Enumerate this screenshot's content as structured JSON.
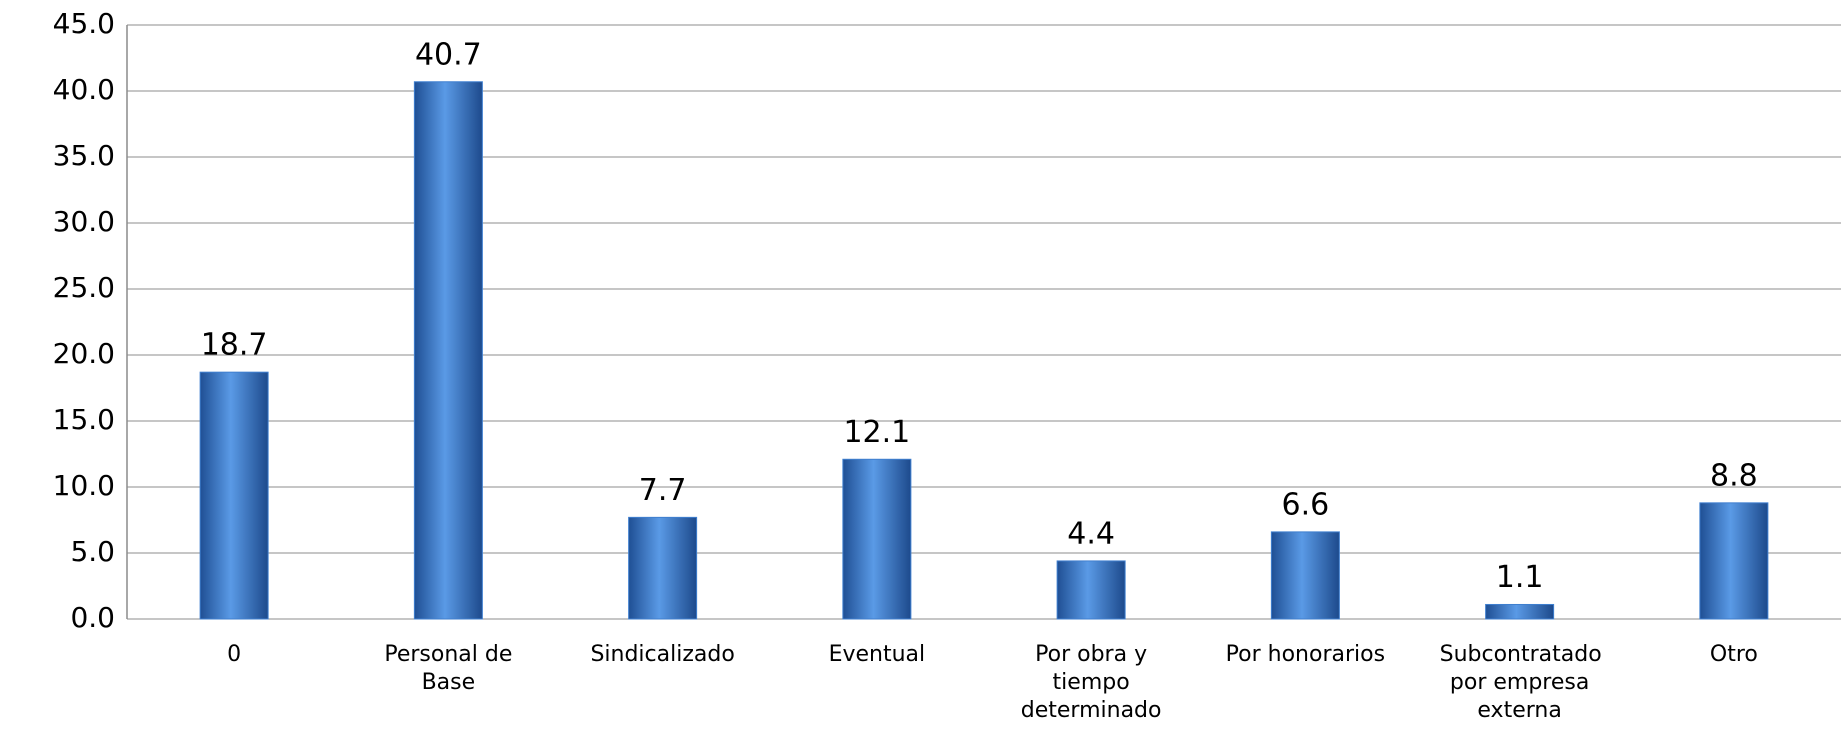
{
  "chart_data": {
    "type": "bar",
    "categories": [
      "0",
      "Personal de Base",
      "Sindicalizado",
      "Eventual",
      "Por obra y tiempo determinado",
      "Por honorarios",
      "Subcontratado por empresa externa",
      "Otro"
    ],
    "values": [
      18.7,
      40.7,
      7.7,
      12.1,
      4.4,
      6.6,
      1.1,
      8.8
    ],
    "color": "#3f7fcf",
    "ylim": [
      0,
      45
    ],
    "yticks": [
      {
        "value": 0,
        "label": "0.0"
      },
      {
        "value": 5,
        "label": "5.0"
      },
      {
        "value": 10,
        "label": "10.0"
      },
      {
        "value": 15,
        "label": "15.0"
      },
      {
        "value": 20,
        "label": "20.0"
      },
      {
        "value": 25,
        "label": "25.0"
      },
      {
        "value": 30,
        "label": "30.0"
      },
      {
        "value": 35,
        "label": "35.0"
      },
      {
        "value": 40,
        "label": "40.0"
      },
      {
        "value": 45,
        "label": "45.0"
      }
    ],
    "grid": true
  }
}
